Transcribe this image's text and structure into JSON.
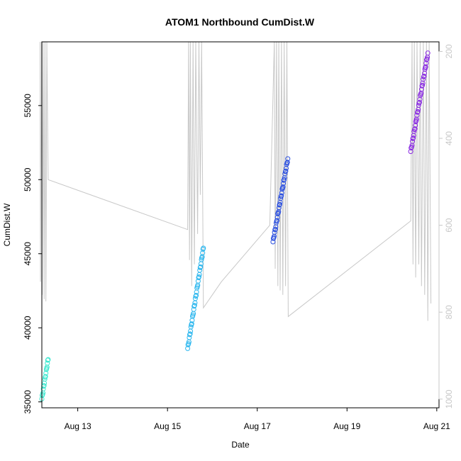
{
  "chart_data": {
    "type": "scatter",
    "title": "ATOM1 Northbound CumDist.W",
    "xlabel": "Date",
    "ylabel": "CumDist.W",
    "x_ticks": [
      "Aug 13",
      "Aug 15",
      "Aug 17",
      "Aug 19",
      "Aug 21"
    ],
    "y_ticks": [
      35000,
      40000,
      45000,
      50000,
      55000
    ],
    "y2_ticks": [
      200,
      400,
      600,
      800,
      1000
    ],
    "x_range_days": [
      12.2,
      21.05
    ],
    "ylim": [
      34600,
      59300
    ],
    "y2lim": [
      1020,
      178
    ],
    "grid": false,
    "colors": {
      "series": [
        "#3ee8d0",
        "#2ab6ee",
        "#2a4fe0",
        "#8a2be2"
      ],
      "depth_line": "#c8c8c8",
      "axis": "#000000",
      "right_axis": "#c8c8c8"
    },
    "series": [
      {
        "x_start_day": 12.2,
        "x_end_day": 12.34,
        "y_start": 35200,
        "y_end": 37900,
        "n": 18
      },
      {
        "x_start_day": 15.45,
        "x_end_day": 15.8,
        "y_start": 38600,
        "y_end": 45400,
        "n": 40
      },
      {
        "x_start_day": 17.35,
        "x_end_day": 17.68,
        "y_start": 45800,
        "y_end": 51400,
        "n": 38
      },
      {
        "x_start_day": 20.42,
        "x_end_day": 20.8,
        "y_start": 51900,
        "y_end": 58500,
        "n": 42
      }
    ],
    "depth_series": {
      "name": "depth",
      "points": [
        [
          12.16,
          160
        ],
        [
          12.17,
          730
        ],
        [
          12.19,
          160
        ],
        [
          12.21,
          760
        ],
        [
          12.23,
          160
        ],
        [
          12.25,
          770
        ],
        [
          12.27,
          160
        ],
        [
          12.29,
          775
        ],
        [
          12.31,
          160
        ],
        [
          12.34,
          495
        ],
        [
          15.45,
          610
        ],
        [
          15.47,
          160
        ],
        [
          15.49,
          680
        ],
        [
          15.51,
          160
        ],
        [
          15.54,
          740
        ],
        [
          15.57,
          160
        ],
        [
          15.6,
          690
        ],
        [
          15.63,
          160
        ],
        [
          15.67,
          620
        ],
        [
          15.7,
          160
        ],
        [
          15.73,
          530
        ],
        [
          15.76,
          160
        ],
        [
          15.8,
          790
        ],
        [
          16.2,
          730
        ],
        [
          17.28,
          600
        ],
        [
          17.38,
          160
        ],
        [
          17.4,
          700
        ],
        [
          17.43,
          160
        ],
        [
          17.46,
          740
        ],
        [
          17.48,
          160
        ],
        [
          17.51,
          750
        ],
        [
          17.54,
          160
        ],
        [
          17.57,
          760
        ],
        [
          17.6,
          160
        ],
        [
          17.63,
          740
        ],
        [
          17.66,
          160
        ],
        [
          17.69,
          810
        ],
        [
          20.42,
          590
        ],
        [
          20.45,
          160
        ],
        [
          20.47,
          690
        ],
        [
          20.5,
          160
        ],
        [
          20.53,
          720
        ],
        [
          20.56,
          160
        ],
        [
          20.6,
          690
        ],
        [
          20.63,
          160
        ],
        [
          20.66,
          740
        ],
        [
          20.7,
          160
        ],
        [
          20.73,
          760
        ],
        [
          20.77,
          160
        ],
        [
          20.8,
          820
        ],
        [
          20.83,
          160
        ],
        [
          20.87,
          780
        ]
      ]
    }
  }
}
